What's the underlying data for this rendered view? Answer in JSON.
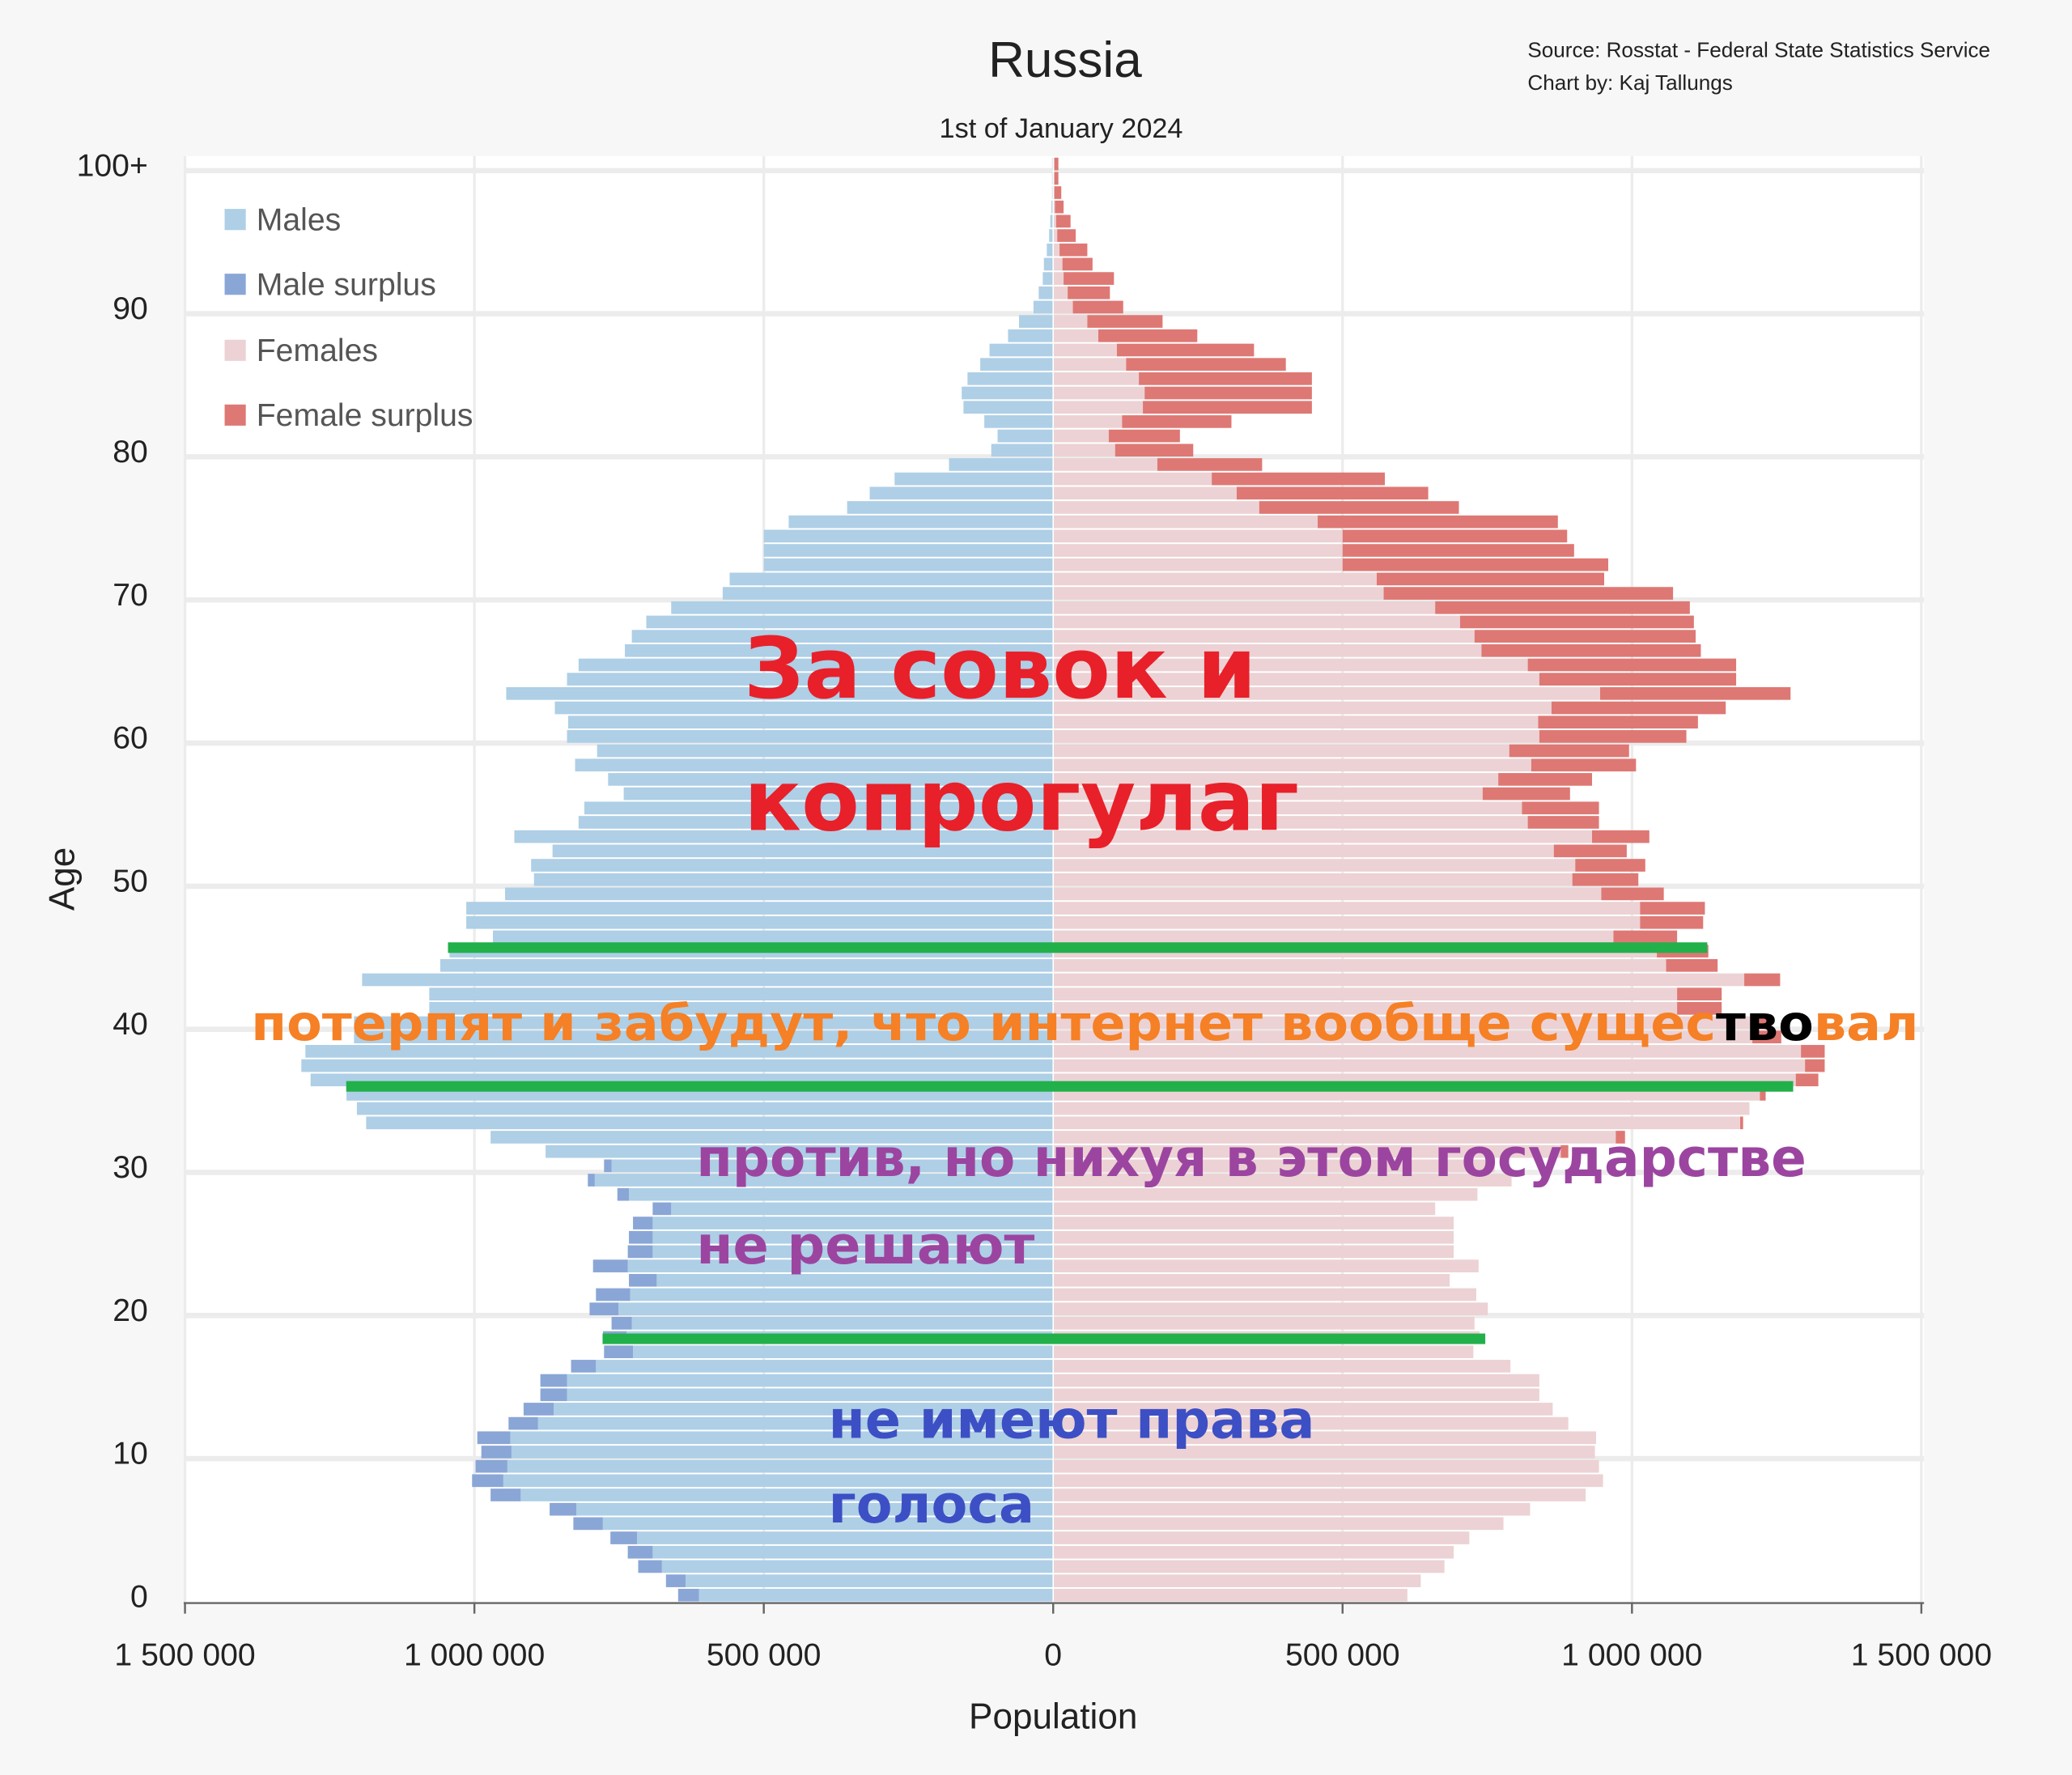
{
  "chart_data": {
    "type": "bar",
    "subtype": "population-pyramid",
    "title": "Russia",
    "subtitle": "1st of January 2024",
    "source": "Source: Rosstat - Federal State Statistics Service",
    "credit": "Chart by: Kaj Tallungs",
    "xlabel": "Population",
    "ylabel": "Age",
    "xlim": [
      -1500000,
      1500000
    ],
    "x_ticks": [
      "1 500 000",
      "1 000 000",
      "500 000",
      "0",
      "500 000",
      "1 000 000",
      "1 500 000"
    ],
    "y_ticks": [
      "0",
      "10",
      "20",
      "30",
      "40",
      "50",
      "60",
      "70",
      "80",
      "90",
      "100+"
    ],
    "legend_position": "top-left",
    "legend": [
      "Males",
      "Male surplus",
      "Females",
      "Female surplus"
    ],
    "colors": {
      "males": "#aecfe6",
      "male_surplus": "#8aa6d6",
      "females": "#ecd2d4",
      "female_surplus": "#de7874"
    },
    "ages": [
      0,
      1,
      2,
      3,
      4,
      5,
      6,
      7,
      8,
      9,
      10,
      11,
      12,
      13,
      14,
      15,
      16,
      17,
      18,
      19,
      20,
      21,
      22,
      23,
      24,
      25,
      26,
      27,
      28,
      29,
      30,
      31,
      32,
      33,
      34,
      35,
      36,
      37,
      38,
      39,
      40,
      41,
      42,
      43,
      44,
      45,
      46,
      47,
      48,
      49,
      50,
      51,
      52,
      53,
      54,
      55,
      56,
      57,
      58,
      59,
      60,
      61,
      62,
      63,
      64,
      65,
      66,
      67,
      68,
      69,
      70,
      71,
      72,
      73,
      74,
      75,
      76,
      77,
      78,
      79,
      80,
      81,
      82,
      83,
      84,
      85,
      86,
      87,
      88,
      89,
      90,
      91,
      92,
      93,
      94,
      95,
      96,
      97,
      98,
      99,
      100
    ],
    "males": [
      648000,
      669000,
      717000,
      735000,
      765000,
      829000,
      870000,
      972000,
      1004000,
      998000,
      988000,
      995000,
      941000,
      915000,
      886000,
      886000,
      833000,
      776000,
      778000,
      763000,
      801000,
      790000,
      733000,
      795000,
      735000,
      733000,
      726000,
      692000,
      753000,
      804000,
      776000,
      877000,
      972000,
      1187000,
      1203000,
      1221000,
      1283000,
      1299000,
      1292000,
      1208000,
      1208000,
      1078000,
      1078000,
      1194000,
      1059000,
      1043000,
      968000,
      1014000,
      1014000,
      947000,
      897000,
      902000,
      865000,
      931000,
      820000,
      810000,
      742000,
      769000,
      826000,
      788000,
      840000,
      838000,
      861000,
      945000,
      840000,
      820000,
      740000,
      728000,
      703000,
      660000,
      571000,
      559000,
      500000,
      500000,
      500000,
      457000,
      356000,
      317000,
      274000,
      180000,
      107000,
      96000,
      119000,
      155000,
      158000,
      148000,
      126000,
      110000,
      78000,
      59000,
      34000,
      25000,
      18000,
      16000,
      11000,
      7000,
      5000,
      3000,
      2000,
      2000,
      2000
    ],
    "females": [
      612000,
      635000,
      676000,
      692000,
      719000,
      778000,
      824000,
      920000,
      950000,
      943000,
      936000,
      938000,
      890000,
      863000,
      840000,
      840000,
      790000,
      726000,
      737000,
      728000,
      751000,
      731000,
      685000,
      735000,
      692000,
      692000,
      692000,
      660000,
      733000,
      792000,
      763000,
      890000,
      988000,
      1192000,
      1203000,
      1231000,
      1322000,
      1333000,
      1333000,
      1258000,
      1242000,
      1155000,
      1155000,
      1256000,
      1148000,
      1132000,
      1078000,
      1123000,
      1126000,
      1055000,
      1011000,
      1023000,
      991000,
      1030000,
      943000,
      943000,
      893000,
      931000,
      1007000,
      995000,
      1094000,
      1114000,
      1162000,
      1274000,
      1180000,
      1180000,
      1119000,
      1110000,
      1107000,
      1100000,
      1071000,
      952000,
      959000,
      900000,
      888000,
      872000,
      701000,
      648000,
      573000,
      361000,
      242000,
      219000,
      308000,
      447000,
      447000,
      447000,
      402000,
      347000,
      249000,
      189000,
      121000,
      98000,
      105000,
      68000,
      59000,
      39000,
      30000,
      18000,
      14000,
      9000,
      9000
    ]
  },
  "overlay_text": {
    "red_line1": "За совок и",
    "red_line2": "копрогулаг",
    "orange_part1": "потерпят и забудут, что интернет вообще сущес",
    "orange_part2": "тво",
    "orange_part3": "вал",
    "purple_line1": "против, но нихуя в этом государстве",
    "purple_line2": "не решают",
    "blue_line1": "не имеют права",
    "blue_line2": "голоса"
  },
  "overlay_colors": {
    "red": "#e8202a",
    "orange": "#f58025",
    "purple": "#9b45a0",
    "blue": "#3d4fc4",
    "green": "#22b04b"
  }
}
